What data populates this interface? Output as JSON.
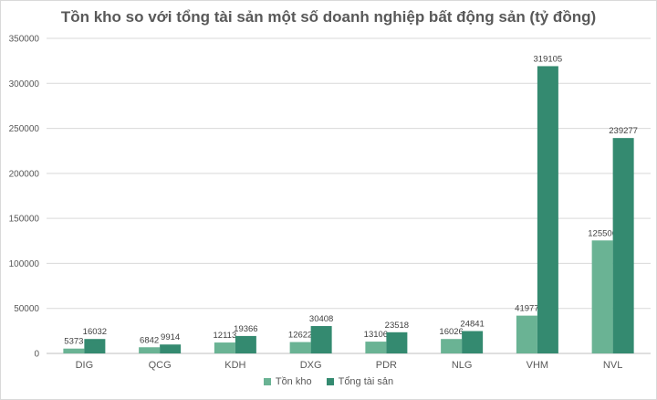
{
  "chart_data": {
    "type": "bar",
    "title": "Tồn kho so với tổng tài sản một số doanh nghiệp bất động sản (tỷ đồng)",
    "categories": [
      "DIG",
      "QCG",
      "KDH",
      "DXG",
      "PDR",
      "NLG",
      "VHM",
      "NVL"
    ],
    "series": [
      {
        "name": "Tồn kho",
        "color": "#6ab394",
        "values": [
          5373,
          6842,
          12113,
          12622,
          13106,
          16026,
          41977,
          125506
        ]
      },
      {
        "name": "Tổng tài sản",
        "color": "#348a70",
        "values": [
          16032,
          9914,
          19366,
          30408,
          23518,
          24841,
          319105,
          239277
        ]
      }
    ],
    "ylim": [
      0,
      350000
    ],
    "yticks": [
      0,
      50000,
      100000,
      150000,
      200000,
      250000,
      300000,
      350000
    ],
    "grid": true,
    "legend": "bottom"
  }
}
